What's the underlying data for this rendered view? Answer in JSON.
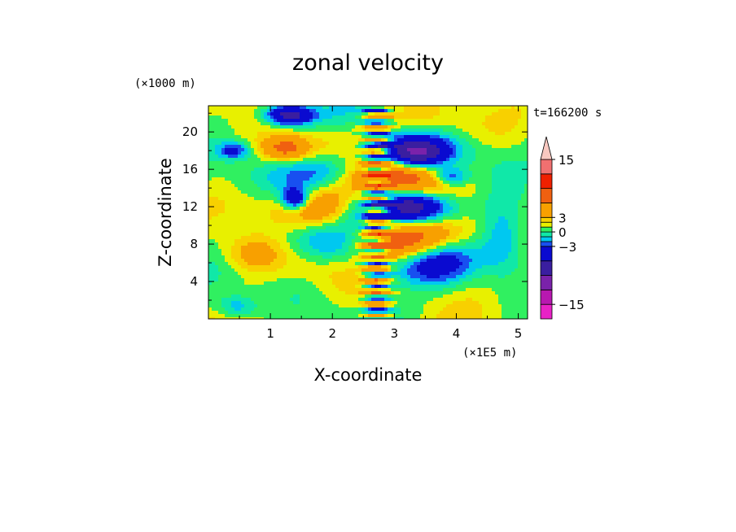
{
  "chart_data": {
    "type": "heatmap",
    "title": "zonal velocity",
    "xlabel": "X-coordinate",
    "ylabel": "Z-coordinate",
    "x_unit": "(×1E5 m)",
    "y_unit": "(×1000 m)",
    "time_label": "t=166200 s",
    "xlim": [
      0,
      5.15
    ],
    "ylim": [
      0,
      22.8
    ],
    "x_ticks": [
      "1",
      "2",
      "3",
      "4",
      "5"
    ],
    "y_ticks": [
      "4",
      "8",
      "12",
      "16",
      "20"
    ],
    "colorbar": {
      "tick_labels": [
        "15",
        "3",
        "0",
        "-3",
        "-15"
      ],
      "levels": [
        -18,
        -15,
        -12,
        -9,
        -6,
        -3,
        -2,
        -1,
        0,
        1,
        2,
        3,
        6,
        9,
        12,
        15,
        18
      ],
      "colors": [
        "#e822c6",
        "#b818b0",
        "#7a22aa",
        "#3a1ea0",
        "#0a0ad0",
        "#1850f0",
        "#00c8f0",
        "#10e8a8",
        "#30f060",
        "#e8f000",
        "#f8d000",
        "#f8a000",
        "#f06010",
        "#f02000",
        "#f07070",
        "#f8a8a0",
        "#f8c8c0"
      ],
      "extend": "max"
    },
    "grid": false,
    "legend": "right"
  }
}
